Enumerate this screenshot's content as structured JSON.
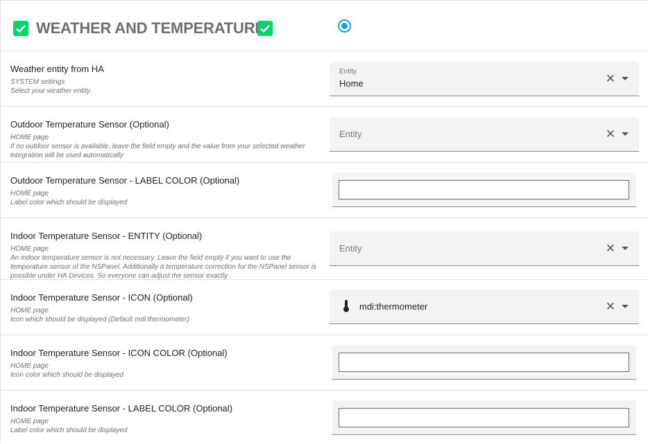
{
  "header": {
    "title": "WEATHER AND TEMPERATURE",
    "accent": "#0bd36a",
    "radio_color": "#1a9cf0"
  },
  "rows": [
    {
      "label": "Weather entity from HA",
      "desc": [
        "SYSTEM settings",
        "Select your weather entity."
      ],
      "field": {
        "float_label": "Entity",
        "value": "Home"
      }
    },
    {
      "label": "Outdoor Temperature Sensor (Optional)",
      "desc": [
        "HOME page",
        "If no outdoor sensor is available, leave the field empty and the value from your selected weather integration will be used automatically"
      ],
      "field": {
        "placeholder": "Entity"
      }
    },
    {
      "label": "Outdoor Temperature Sensor - LABEL COLOR (Optional)",
      "desc": [
        "HOME page",
        "Label color which should be displayed"
      ],
      "field": {
        "value": ""
      }
    },
    {
      "label": "Indoor Temperature Sensor - ENTITY (Optional)",
      "desc": [
        "HOME page",
        "An indoor temperature sensor is not necessary. Leave the field empty if you want to use the temperature sensor of the NSPanel. Additionally a temperature correction for the NSPanel sensor is possible under HA Devices. So everyone can adjust the sensor exactly"
      ],
      "field": {
        "placeholder": "Entity"
      }
    },
    {
      "label": "Indoor Temperature Sensor - ICON (Optional)",
      "desc": [
        "HOME page",
        "Icon which should be displayed (Default mdi:thermometer)"
      ],
      "field": {
        "value": "mdi:thermometer",
        "icon": "thermometer-icon"
      }
    },
    {
      "label": "Indoor Temperature Sensor - ICON COLOR (Optional)",
      "desc": [
        "HOME page",
        "Icon color which should be displayed"
      ],
      "field": {
        "value": ""
      }
    },
    {
      "label": "Indoor Temperature Sensor - LABEL COLOR (Optional)",
      "desc": [
        "HOME page",
        "Label color which should be displayed"
      ],
      "field": {
        "value": ""
      }
    }
  ]
}
